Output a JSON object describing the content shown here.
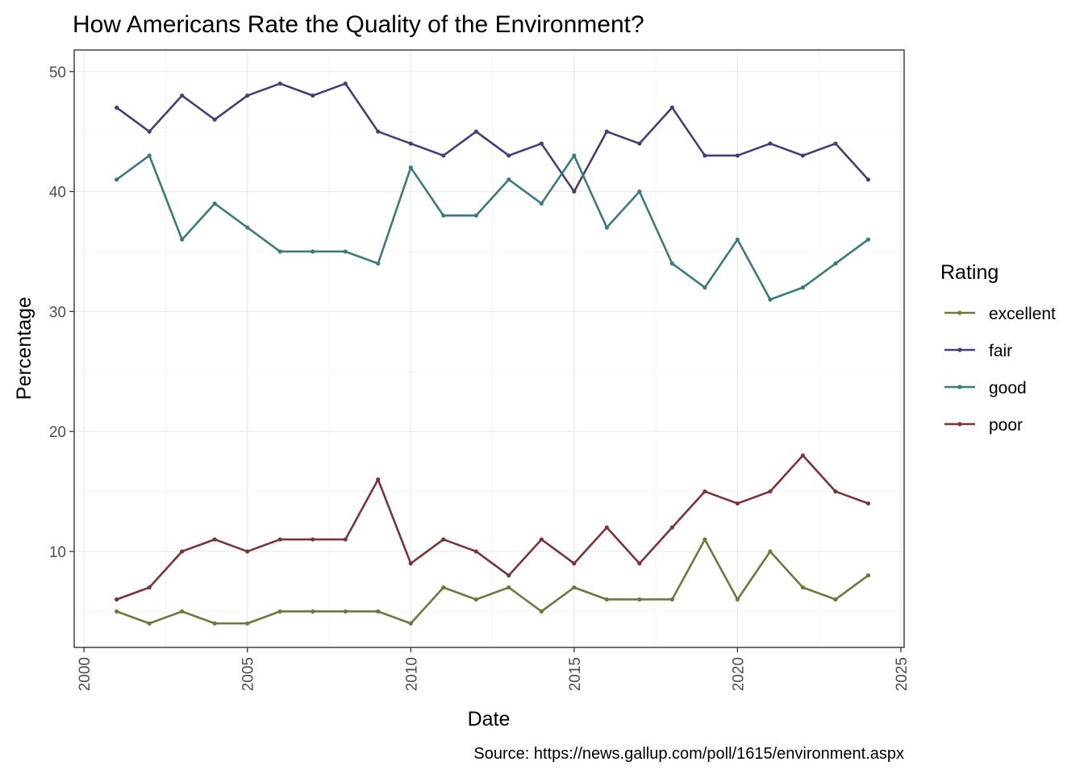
{
  "chart_data": {
    "type": "line",
    "title": "How Americans Rate the Quality of the Environment?",
    "xlabel": "Date",
    "ylabel": "Percentage",
    "caption": "Source: https://news.gallup.com/poll/1615/environment.aspx",
    "xlim": [
      1999.7,
      2025.1
    ],
    "ylim": [
      2.0,
      51.8
    ],
    "x_ticks": [
      2000,
      2005,
      2010,
      2015,
      2020,
      2025
    ],
    "y_ticks": [
      10,
      20,
      30,
      40,
      50
    ],
    "x_minor": [
      2002.5,
      2007.5,
      2012.5,
      2017.5,
      2022.5
    ],
    "y_minor": [
      5,
      15,
      25,
      35,
      45
    ],
    "grid": true,
    "legend": {
      "title": "Rating",
      "position": "right"
    },
    "x": [
      2001,
      2002,
      2003,
      2004,
      2005,
      2006,
      2007,
      2008,
      2009,
      2010,
      2011,
      2012,
      2013,
      2014,
      2015,
      2016,
      2017,
      2018,
      2019,
      2020,
      2021,
      2022,
      2023,
      2024
    ],
    "series": [
      {
        "name": "excellent",
        "color": "#6b7a3a",
        "values": [
          5,
          4,
          5,
          4,
          4,
          5,
          5,
          5,
          5,
          4,
          7,
          6,
          7,
          5,
          7,
          6,
          6,
          6,
          11,
          6,
          10,
          7,
          6,
          8
        ]
      },
      {
        "name": "fair",
        "color": "#4b3a78",
        "values": [
          47,
          45,
          48,
          46,
          48,
          49,
          48,
          49,
          45,
          44,
          43,
          45,
          43,
          44,
          40,
          45,
          44,
          47,
          43,
          43,
          44,
          43,
          44,
          41
        ]
      },
      {
        "name": "good",
        "color": "#3a7b7b",
        "values": [
          41,
          43,
          36,
          39,
          37,
          35,
          35,
          35,
          34,
          42,
          38,
          38,
          41,
          39,
          43,
          37,
          40,
          34,
          32,
          36,
          31,
          32,
          34,
          36
        ]
      },
      {
        "name": "poor",
        "color": "#7a3438",
        "values": [
          6,
          7,
          10,
          11,
          10,
          11,
          11,
          11,
          16,
          9,
          11,
          10,
          8,
          11,
          9,
          12,
          9,
          12,
          15,
          14,
          15,
          18,
          15,
          14
        ]
      }
    ]
  }
}
